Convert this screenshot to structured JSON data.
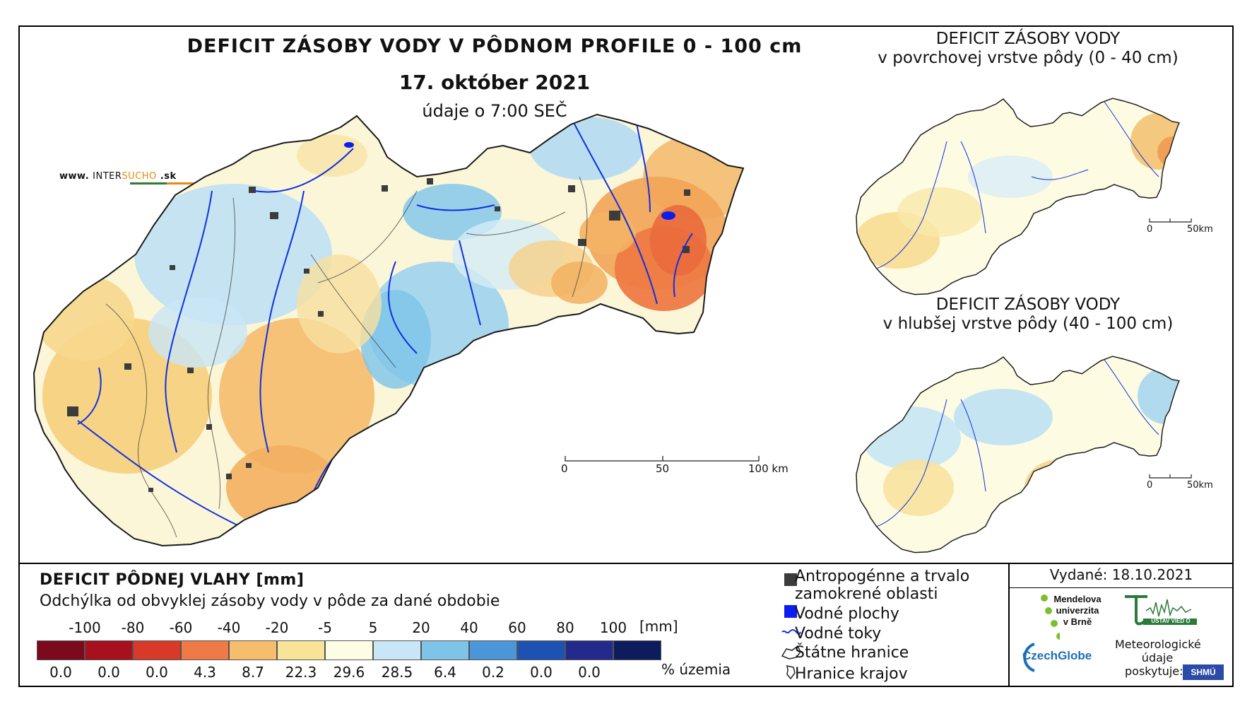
{
  "header": {
    "title": "DEFICIT ZÁSOBY VODY V PÔDNOM PROFILE 0 - 100 cm",
    "date": "17. október 2021",
    "time": "údaje o 7:00 SEČ",
    "site": {
      "prefix": "www.",
      "brand": "INTER",
      "highlight": "SUCHO",
      "suffix": ".sk"
    }
  },
  "main_map": {
    "scale": {
      "labels": [
        "0",
        "50",
        "100 km"
      ]
    },
    "colors": {
      "border": "#1a1a1a",
      "river": "#1030e0",
      "urban": "#3c3c3c",
      "water": "#0a1ef0"
    }
  },
  "inset_top": {
    "title_line1": "DEFICIT ZÁSOBY VODY",
    "title_line2": "v povrchovej vrstve pôdy (0 - 40 cm)",
    "scale": {
      "labels": [
        "0",
        "50km"
      ]
    }
  },
  "inset_bottom": {
    "title_line1": "DEFICIT ZÁSOBY VODY",
    "title_line2": "v hlubšej vrstve pôdy (40 - 100 cm)",
    "scale": {
      "labels": [
        "0",
        "50km"
      ]
    }
  },
  "legend": {
    "title": "DEFICIT PÔDNEJ VLAHY [mm]",
    "subtitle": "Odchýlka od obvyklej zásoby vody v pôde za dané obdobie",
    "class_labels": [
      "-100",
      "-80",
      "-60",
      "-40",
      "-20",
      "-5",
      "5",
      "20",
      "40",
      "60",
      "80",
      "100"
    ],
    "unit": "[mm]",
    "colors": [
      "#7a0a1c",
      "#a8101e",
      "#d83a2a",
      "#f07a46",
      "#f6bd6c",
      "#f8e498",
      "#fdfde6",
      "#c8e6f6",
      "#7dc4e8",
      "#4b96d8",
      "#1e52b2",
      "#242a8c",
      "#0c1c5c"
    ],
    "percentages": [
      "0.0",
      "0.0",
      "0.0",
      "4.3",
      "8.7",
      "22.3",
      "29.6",
      "28.5",
      "6.4",
      "0.2",
      "0.0",
      "0.0"
    ],
    "percent_label": "% územia"
  },
  "map_legend": {
    "items": [
      {
        "label": "Antropogénne a trvalo",
        "label2": "zamokrené oblasti",
        "icon": "urban-area-icon",
        "color": "#3c3c3c"
      },
      {
        "label": "Vodné plochy",
        "icon": "water-body-icon",
        "color": "#0a1ef0"
      },
      {
        "label": "Vodné toky",
        "icon": "river-icon",
        "color": "#1030e0"
      },
      {
        "label": "Štátne hranice",
        "icon": "state-border-icon"
      },
      {
        "label": "Hranice krajov",
        "icon": "region-border-icon"
      }
    ]
  },
  "issued": "Vydané: 18.10.2021",
  "logos": {
    "mendel": [
      "Mendelova",
      "univerzita",
      "v Brně"
    ],
    "czechglobe": "CzechGlobe",
    "ustav": "ÚSTAV VIED O ZEMI",
    "meteo": [
      "Meteorologické",
      "údaje",
      "poskytuje:"
    ],
    "shmu": "SHMÚ"
  }
}
